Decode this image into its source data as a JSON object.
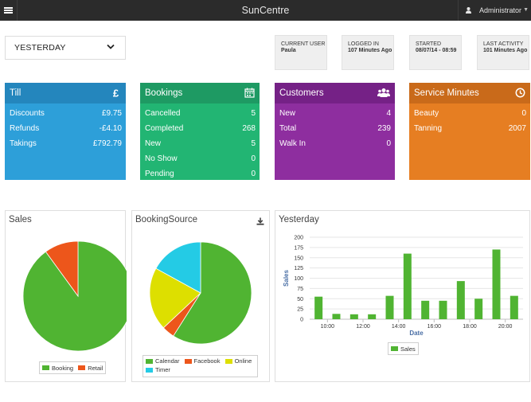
{
  "app": {
    "title": "SunCentre",
    "user": "Administrator"
  },
  "date_filter": {
    "selected": "YESTERDAY"
  },
  "info": [
    {
      "key": "CURRENT USER",
      "value": "Paula"
    },
    {
      "key": "LOGGED IN",
      "value": "107 Minutes Ago"
    },
    {
      "key": "STARTED",
      "value": "08/07/14 - 08:59"
    },
    {
      "key": "LAST ACTIVITY",
      "value": "101 Minutes Ago"
    }
  ],
  "panels": {
    "till": {
      "title": "Till",
      "icon": "pound-icon",
      "color": "#2d9fd9",
      "header_color": "#2486bd",
      "rows": [
        {
          "label": "Discounts",
          "value": "£9.75"
        },
        {
          "label": "Refunds",
          "value": "-£4.10"
        },
        {
          "label": "Takings",
          "value": "£792.79"
        }
      ]
    },
    "bookings": {
      "title": "Bookings",
      "icon": "calendar-icon",
      "color": "#22b573",
      "header_color": "#1e9a63",
      "rows": [
        {
          "label": "Cancelled",
          "value": "5"
        },
        {
          "label": "Completed",
          "value": "268"
        },
        {
          "label": "New",
          "value": "5"
        },
        {
          "label": "No Show",
          "value": "0"
        },
        {
          "label": "Pending",
          "value": "0"
        }
      ]
    },
    "customers": {
      "title": "Customers",
      "icon": "users-icon",
      "color": "#8e2e9f",
      "header_color": "#752186",
      "rows": [
        {
          "label": "New",
          "value": "4"
        },
        {
          "label": "Total",
          "value": "239"
        },
        {
          "label": "Walk In",
          "value": "0"
        }
      ]
    },
    "service": {
      "title": "Service Minutes",
      "icon": "clock-icon",
      "color": "#e67e22",
      "header_color": "#c96a1a",
      "rows": [
        {
          "label": "Beauty",
          "value": "0"
        },
        {
          "label": "Tanning",
          "value": "2007"
        }
      ]
    }
  },
  "charts": {
    "sales": {
      "title": "Sales",
      "legend": [
        "Booking",
        "Retail"
      ]
    },
    "booking_source": {
      "title": "BookingSource",
      "legend": [
        "Calendar",
        "Facebook",
        "Online",
        "Timer"
      ]
    },
    "yesterday": {
      "title": "Yesterday",
      "legend": [
        "Sales"
      ]
    }
  },
  "chart_data": [
    {
      "type": "pie",
      "title": "Sales",
      "labels": [
        "Booking",
        "Retail"
      ],
      "values": [
        90,
        10
      ],
      "colors": [
        "#50b432",
        "#ed561b"
      ]
    },
    {
      "type": "pie",
      "title": "BookingSource",
      "labels": [
        "Calendar",
        "Facebook",
        "Online",
        "Timer"
      ],
      "values": [
        59,
        4,
        20,
        17
      ],
      "colors": [
        "#50b432",
        "#ed561b",
        "#dddf00",
        "#24cbe5"
      ]
    },
    {
      "type": "bar",
      "title": "Yesterday",
      "xlabel": "Date",
      "ylabel": "Sales",
      "ylim": [
        0,
        200
      ],
      "yticks": [
        0,
        25,
        50,
        75,
        100,
        125,
        150,
        175,
        200
      ],
      "xticks": [
        "10:00",
        "12:00",
        "14:00",
        "16:00",
        "18:00",
        "20:00"
      ],
      "x_hours": [
        9.5,
        10.5,
        11.5,
        12.5,
        13.5,
        14.5,
        15.5,
        16.5,
        17.5,
        18.5,
        19.5,
        20.5
      ],
      "series": [
        {
          "name": "Sales",
          "color": "#50b432",
          "values": [
            55,
            13,
            12,
            12,
            57,
            160,
            45,
            45,
            93,
            50,
            170,
            57
          ]
        }
      ]
    }
  ]
}
